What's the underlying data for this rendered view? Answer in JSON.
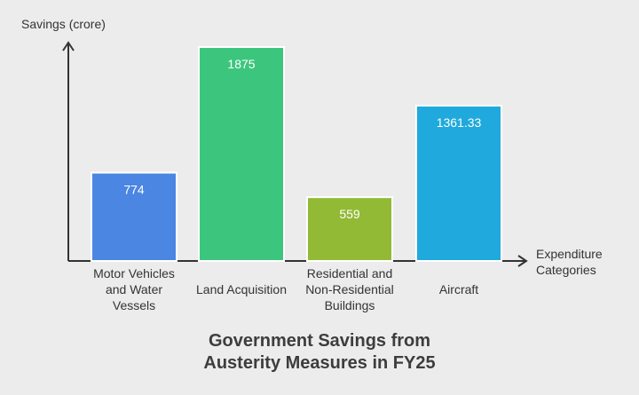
{
  "chart_data": {
    "type": "bar",
    "title_lines": [
      "Government Savings from",
      "Austerity Measures in FY25"
    ],
    "ylabel": "Savings (crore)",
    "xlabel_lines": [
      "Expenditure",
      "Categories"
    ],
    "ylim": [
      0,
      2000
    ],
    "grid": false,
    "legend": "none",
    "categories": [
      "Motor Vehicles and Water Vessels",
      "Land Acquisition",
      "Residential and Non-Residential Buildings",
      "Aircraft"
    ],
    "category_label_lines": [
      [
        "Motor Vehicles",
        "and Water",
        "Vessels"
      ],
      [
        "Land Acquisition"
      ],
      [
        "Residential and",
        "Non-Residential",
        "Buildings"
      ],
      [
        "Aircraft"
      ]
    ],
    "values": [
      774,
      1875,
      559,
      1361.33
    ],
    "value_labels": [
      "774",
      "1875",
      "559",
      "1361.33"
    ],
    "colors": [
      "#4a86e2",
      "#3cc67d",
      "#92ba35",
      "#20a9dc"
    ]
  }
}
